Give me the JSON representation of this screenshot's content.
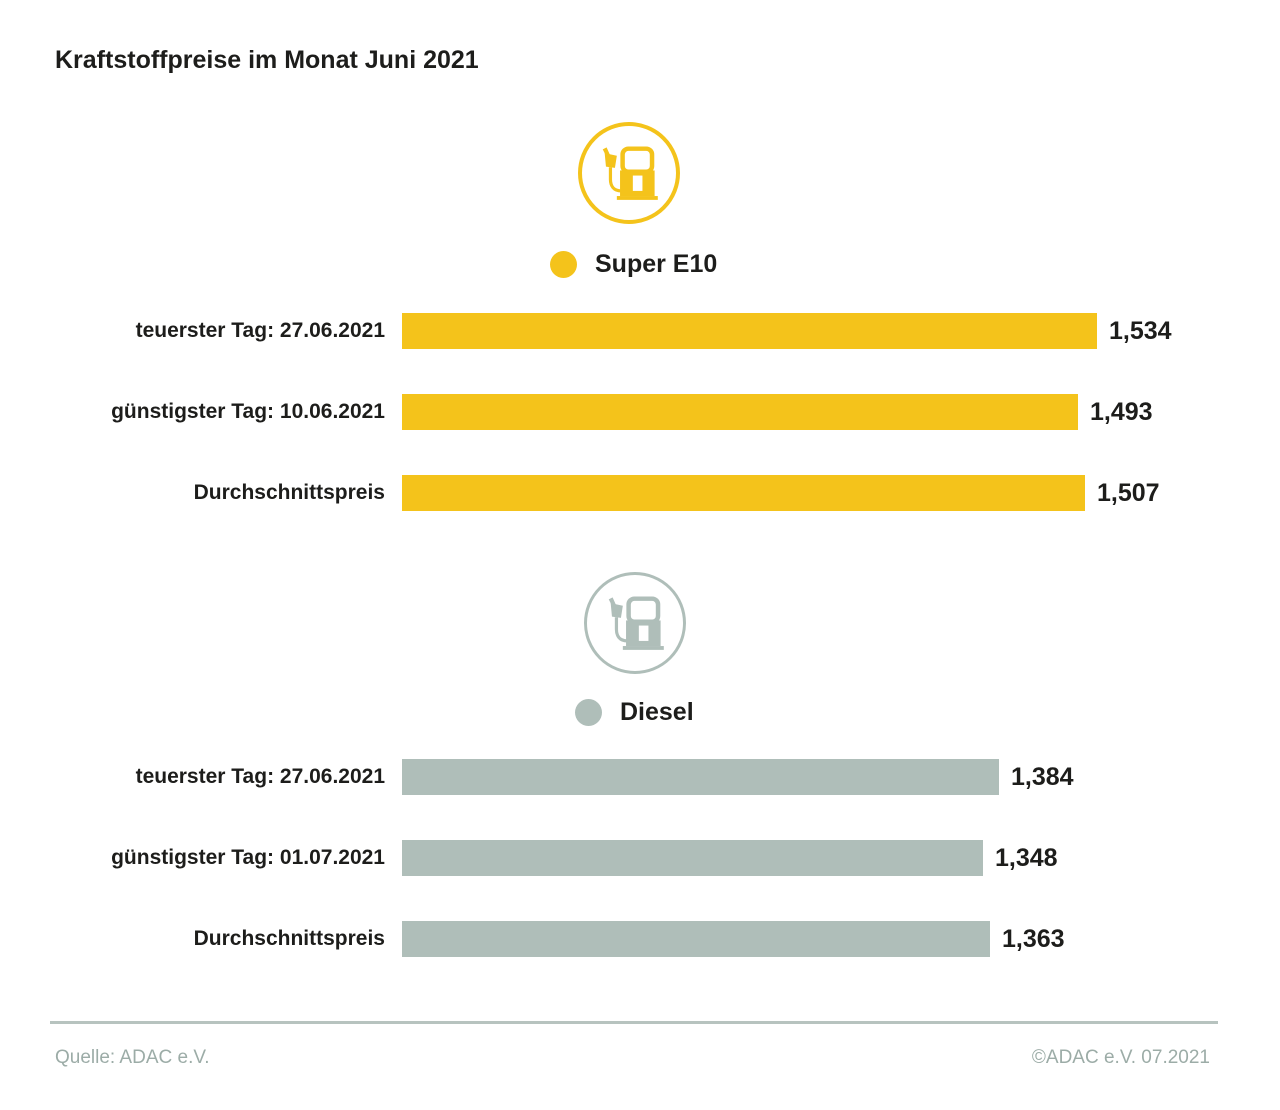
{
  "title": "Kraftstoffpreise im Monat Juni 2021",
  "footer": {
    "source": "Quelle: ADAC e.V.",
    "copyright": "©ADAC e.V. 07.2021"
  },
  "chart_data": [
    {
      "type": "bar",
      "orientation": "horizontal",
      "title": "Super E10",
      "icon": "fuel-pump-icon",
      "color": "#F4C31B",
      "categories": [
        "teuerster Tag: 27.06.2021",
        "günstigster Tag: 10.06.2021",
        "Durchschnittspreis"
      ],
      "values": [
        1.534,
        1.493,
        1.507
      ],
      "value_labels": [
        "1,534",
        "1,493",
        "1,507"
      ],
      "grid": false,
      "legend_position": "top-center"
    },
    {
      "type": "bar",
      "orientation": "horizontal",
      "title": "Diesel",
      "icon": "fuel-pump-icon",
      "color": "#AFBEB9",
      "categories": [
        "teuerster Tag: 27.06.2021",
        "günstigster Tag: 01.07.2021",
        "Durchschnittspreis"
      ],
      "values": [
        1.384,
        1.348,
        1.363
      ],
      "value_labels": [
        "1,384",
        "1,348",
        "1,363"
      ],
      "grid": false,
      "legend_position": "top-center"
    }
  ]
}
